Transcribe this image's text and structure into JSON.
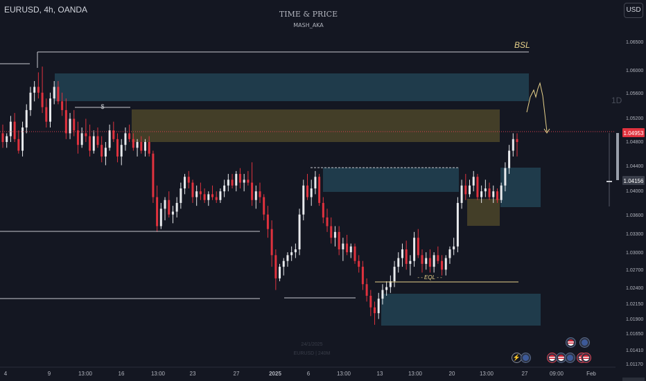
{
  "header": {
    "symbol": "EURUSD, 4h, OANDA",
    "currency_button": "USD",
    "watermark_title": "TIME & PRICE",
    "watermark_author": "MASH_AKA",
    "faint_date": "24/1/2025",
    "faint_symbol": "EURUSD | 240M"
  },
  "chart_data": {
    "type": "candlestick",
    "title": "EURUSD, 4h, OANDA",
    "ylim": [
      1.0113,
      1.068
    ],
    "y_ticks": [
      "1.06500",
      "1.06000",
      "1.05600",
      "1.05200",
      "1.04800",
      "1.04400",
      "1.04000",
      "1.03600",
      "1.03300",
      "1.03000",
      "1.02700",
      "1.02400",
      "1.02150",
      "1.01900",
      "1.01650",
      "1.01410",
      "1.01170"
    ],
    "x_ticks": [
      "4",
      "9",
      "13:00",
      "16",
      "13:00",
      "23",
      "27",
      "2025",
      "6",
      "13:00",
      "13",
      "13:00",
      "20",
      "13:00",
      "27",
      "09:00",
      "Feb"
    ],
    "last_price": "1.04953",
    "prev_close_label": "1.04156",
    "annotations": {
      "bsl": "BSL",
      "eql": "- - EQL - -",
      "dollar": "$",
      "id_label": "1D"
    },
    "series": [
      {
        "values": [
          {
            "o": 1.051,
            "h": 1.0525,
            "l": 1.0485,
            "c": 1.0495
          },
          {
            "o": 1.0495,
            "h": 1.051,
            "l": 1.0485,
            "c": 1.0505
          },
          {
            "o": 1.0505,
            "h": 1.054,
            "l": 1.0495,
            "c": 1.053
          },
          {
            "o": 1.053,
            "h": 1.0545,
            "l": 1.0495,
            "c": 1.05
          },
          {
            "o": 1.05,
            "h": 1.0515,
            "l": 1.0475,
            "c": 1.048
          },
          {
            "o": 1.048,
            "h": 1.053,
            "l": 1.047,
            "c": 1.052
          },
          {
            "o": 1.052,
            "h": 1.056,
            "l": 1.051,
            "c": 1.055
          },
          {
            "o": 1.055,
            "h": 1.059,
            "l": 1.054,
            "c": 1.058
          },
          {
            "o": 1.058,
            "h": 1.06,
            "l": 1.0565,
            "c": 1.059
          },
          {
            "o": 1.059,
            "h": 1.0615,
            "l": 1.057,
            "c": 1.058
          },
          {
            "o": 1.058,
            "h": 1.0625,
            "l": 1.0545,
            "c": 1.0555
          },
          {
            "o": 1.0555,
            "h": 1.057,
            "l": 1.052,
            "c": 1.053
          },
          {
            "o": 1.053,
            "h": 1.058,
            "l": 1.052,
            "c": 1.057
          },
          {
            "o": 1.057,
            "h": 1.06,
            "l": 1.056,
            "c": 1.059
          },
          {
            "o": 1.059,
            "h": 1.06,
            "l": 1.056,
            "c": 1.0565
          },
          {
            "o": 1.0565,
            "h": 1.058,
            "l": 1.054,
            "c": 1.055
          },
          {
            "o": 1.055,
            "h": 1.057,
            "l": 1.05,
            "c": 1.051
          },
          {
            "o": 1.051,
            "h": 1.0545,
            "l": 1.05,
            "c": 1.0535
          },
          {
            "o": 1.0535,
            "h": 1.055,
            "l": 1.0505,
            "c": 1.0515
          },
          {
            "o": 1.0515,
            "h": 1.053,
            "l": 1.0475,
            "c": 1.049
          },
          {
            "o": 1.049,
            "h": 1.052,
            "l": 1.0485,
            "c": 1.051
          },
          {
            "o": 1.051,
            "h": 1.0535,
            "l": 1.0495,
            "c": 1.0505
          },
          {
            "o": 1.0505,
            "h": 1.0525,
            "l": 1.047,
            "c": 1.048
          },
          {
            "o": 1.048,
            "h": 1.0515,
            "l": 1.0475,
            "c": 1.0505
          },
          {
            "o": 1.0505,
            "h": 1.052,
            "l": 1.0485,
            "c": 1.049
          },
          {
            "o": 1.049,
            "h": 1.0505,
            "l": 1.046,
            "c": 1.047
          },
          {
            "o": 1.047,
            "h": 1.0495,
            "l": 1.0455,
            "c": 1.0485
          },
          {
            "o": 1.0485,
            "h": 1.0525,
            "l": 1.048,
            "c": 1.0515
          },
          {
            "o": 1.0515,
            "h": 1.053,
            "l": 1.0495,
            "c": 1.05
          },
          {
            "o": 1.05,
            "h": 1.051,
            "l": 1.046,
            "c": 1.047
          },
          {
            "o": 1.047,
            "h": 1.05,
            "l": 1.0455,
            "c": 1.049
          },
          {
            "o": 1.049,
            "h": 1.052,
            "l": 1.048,
            "c": 1.051
          },
          {
            "o": 1.051,
            "h": 1.0525,
            "l": 1.0495,
            "c": 1.05
          },
          {
            "o": 1.05,
            "h": 1.051,
            "l": 1.048,
            "c": 1.0485
          },
          {
            "o": 1.0485,
            "h": 1.05,
            "l": 1.047,
            "c": 1.0495
          },
          {
            "o": 1.0495,
            "h": 1.0505,
            "l": 1.0475,
            "c": 1.048
          },
          {
            "o": 1.048,
            "h": 1.05,
            "l": 1.047,
            "c": 1.0495
          },
          {
            "o": 1.0495,
            "h": 1.0505,
            "l": 1.047,
            "c": 1.0475
          },
          {
            "o": 1.0475,
            "h": 1.048,
            "l": 1.039,
            "c": 1.04
          },
          {
            "o": 1.04,
            "h": 1.042,
            "l": 1.034,
            "c": 1.035
          },
          {
            "o": 1.035,
            "h": 1.039,
            "l": 1.0345,
            "c": 1.038
          },
          {
            "o": 1.038,
            "h": 1.04,
            "l": 1.036,
            "c": 1.0395
          },
          {
            "o": 1.0395,
            "h": 1.041,
            "l": 1.0365,
            "c": 1.037
          },
          {
            "o": 1.037,
            "h": 1.0385,
            "l": 1.0355,
            "c": 1.0375
          },
          {
            "o": 1.0375,
            "h": 1.04,
            "l": 1.0365,
            "c": 1.039
          },
          {
            "o": 1.039,
            "h": 1.0425,
            "l": 1.038,
            "c": 1.0415
          },
          {
            "o": 1.0415,
            "h": 1.044,
            "l": 1.0405,
            "c": 1.0435
          },
          {
            "o": 1.0435,
            "h": 1.0445,
            "l": 1.0415,
            "c": 1.0425
          },
          {
            "o": 1.0425,
            "h": 1.043,
            "l": 1.039,
            "c": 1.04
          },
          {
            "o": 1.04,
            "h": 1.042,
            "l": 1.0385,
            "c": 1.041
          },
          {
            "o": 1.041,
            "h": 1.0425,
            "l": 1.0395,
            "c": 1.0405
          },
          {
            "o": 1.0405,
            "h": 1.0415,
            "l": 1.039,
            "c": 1.0395
          },
          {
            "o": 1.0395,
            "h": 1.041,
            "l": 1.0385,
            "c": 1.0405
          },
          {
            "o": 1.0405,
            "h": 1.042,
            "l": 1.0395,
            "c": 1.04
          },
          {
            "o": 1.04,
            "h": 1.041,
            "l": 1.039,
            "c": 1.0395
          },
          {
            "o": 1.0395,
            "h": 1.0415,
            "l": 1.039,
            "c": 1.041
          },
          {
            "o": 1.041,
            "h": 1.043,
            "l": 1.04,
            "c": 1.042
          },
          {
            "o": 1.042,
            "h": 1.044,
            "l": 1.041,
            "c": 1.043
          },
          {
            "o": 1.043,
            "h": 1.044,
            "l": 1.0415,
            "c": 1.042
          },
          {
            "o": 1.042,
            "h": 1.0445,
            "l": 1.041,
            "c": 1.044
          },
          {
            "o": 1.044,
            "h": 1.045,
            "l": 1.0415,
            "c": 1.0425
          },
          {
            "o": 1.0425,
            "h": 1.044,
            "l": 1.041,
            "c": 1.043
          },
          {
            "o": 1.043,
            "h": 1.0445,
            "l": 1.042,
            "c": 1.0425
          },
          {
            "o": 1.0425,
            "h": 1.046,
            "l": 1.0385,
            "c": 1.0395
          },
          {
            "o": 1.0395,
            "h": 1.042,
            "l": 1.038,
            "c": 1.041
          },
          {
            "o": 1.041,
            "h": 1.0425,
            "l": 1.039,
            "c": 1.04
          },
          {
            "o": 1.04,
            "h": 1.0405,
            "l": 1.036,
            "c": 1.037
          },
          {
            "o": 1.037,
            "h": 1.0385,
            "l": 1.033,
            "c": 1.0345
          },
          {
            "o": 1.0345,
            "h": 1.036,
            "l": 1.028,
            "c": 1.03
          },
          {
            "o": 1.03,
            "h": 1.031,
            "l": 1.024,
            "c": 1.026
          },
          {
            "o": 1.026,
            "h": 1.0285,
            "l": 1.0255,
            "c": 1.028
          },
          {
            "o": 1.028,
            "h": 1.0295,
            "l": 1.0265,
            "c": 1.029
          },
          {
            "o": 1.029,
            "h": 1.0305,
            "l": 1.028,
            "c": 1.03
          },
          {
            "o": 1.03,
            "h": 1.0315,
            "l": 1.029,
            "c": 1.0305
          },
          {
            "o": 1.0305,
            "h": 1.032,
            "l": 1.0295,
            "c": 1.031
          },
          {
            "o": 1.031,
            "h": 1.038,
            "l": 1.03,
            "c": 1.037
          },
          {
            "o": 1.037,
            "h": 1.043,
            "l": 1.036,
            "c": 1.042
          },
          {
            "o": 1.042,
            "h": 1.044,
            "l": 1.0395,
            "c": 1.04
          },
          {
            "o": 1.04,
            "h": 1.043,
            "l": 1.0385,
            "c": 1.0415
          },
          {
            "o": 1.0415,
            "h": 1.0445,
            "l": 1.0405,
            "c": 1.0435
          },
          {
            "o": 1.0435,
            "h": 1.044,
            "l": 1.0385,
            "c": 1.039
          },
          {
            "o": 1.039,
            "h": 1.04,
            "l": 1.0355,
            "c": 1.0365
          },
          {
            "o": 1.0365,
            "h": 1.038,
            "l": 1.034,
            "c": 1.035
          },
          {
            "o": 1.035,
            "h": 1.0365,
            "l": 1.032,
            "c": 1.033
          },
          {
            "o": 1.033,
            "h": 1.035,
            "l": 1.0315,
            "c": 1.034
          },
          {
            "o": 1.034,
            "h": 1.035,
            "l": 1.03,
            "c": 1.031
          },
          {
            "o": 1.031,
            "h": 1.033,
            "l": 1.029,
            "c": 1.032
          },
          {
            "o": 1.032,
            "h": 1.0335,
            "l": 1.03,
            "c": 1.0305
          },
          {
            "o": 1.0305,
            "h": 1.032,
            "l": 1.0295,
            "c": 1.0315
          },
          {
            "o": 1.0315,
            "h": 1.032,
            "l": 1.0285,
            "c": 1.029
          },
          {
            "o": 1.029,
            "h": 1.03,
            "l": 1.027,
            "c": 1.028
          },
          {
            "o": 1.028,
            "h": 1.029,
            "l": 1.024,
            "c": 1.025
          },
          {
            "o": 1.025,
            "h": 1.026,
            "l": 1.022,
            "c": 1.023
          },
          {
            "o": 1.023,
            "h": 1.024,
            "l": 1.0195,
            "c": 1.021
          },
          {
            "o": 1.021,
            "h": 1.022,
            "l": 1.018,
            "c": 1.02
          },
          {
            "o": 1.02,
            "h": 1.0235,
            "l": 1.019,
            "c": 1.0225
          },
          {
            "o": 1.0225,
            "h": 1.025,
            "l": 1.0215,
            "c": 1.024
          },
          {
            "o": 1.024,
            "h": 1.0255,
            "l": 1.023,
            "c": 1.0245
          },
          {
            "o": 1.0245,
            "h": 1.0265,
            "l": 1.0235,
            "c": 1.0255
          },
          {
            "o": 1.0255,
            "h": 1.029,
            "l": 1.0245,
            "c": 1.028
          },
          {
            "o": 1.028,
            "h": 1.0305,
            "l": 1.027,
            "c": 1.0295
          },
          {
            "o": 1.0295,
            "h": 1.032,
            "l": 1.028,
            "c": 1.031
          },
          {
            "o": 1.031,
            "h": 1.0325,
            "l": 1.0275,
            "c": 1.0285
          },
          {
            "o": 1.0285,
            "h": 1.03,
            "l": 1.0265,
            "c": 1.029
          },
          {
            "o": 1.029,
            "h": 1.034,
            "l": 1.028,
            "c": 1.033
          },
          {
            "o": 1.033,
            "h": 1.0345,
            "l": 1.0295,
            "c": 1.03
          },
          {
            "o": 1.03,
            "h": 1.031,
            "l": 1.027,
            "c": 1.0285
          },
          {
            "o": 1.0285,
            "h": 1.0305,
            "l": 1.0275,
            "c": 1.0295
          },
          {
            "o": 1.0295,
            "h": 1.031,
            "l": 1.027,
            "c": 1.028
          },
          {
            "o": 1.028,
            "h": 1.0305,
            "l": 1.027,
            "c": 1.03
          },
          {
            "o": 1.03,
            "h": 1.0315,
            "l": 1.0285,
            "c": 1.029
          },
          {
            "o": 1.029,
            "h": 1.03,
            "l": 1.0265,
            "c": 1.0275
          },
          {
            "o": 1.0275,
            "h": 1.03,
            "l": 1.0265,
            "c": 1.0295
          },
          {
            "o": 1.0295,
            "h": 1.0315,
            "l": 1.0285,
            "c": 1.031
          },
          {
            "o": 1.031,
            "h": 1.033,
            "l": 1.03,
            "c": 1.0315
          },
          {
            "o": 1.0315,
            "h": 1.04,
            "l": 1.0305,
            "c": 1.039
          },
          {
            "o": 1.039,
            "h": 1.043,
            "l": 1.038,
            "c": 1.042
          },
          {
            "o": 1.042,
            "h": 1.044,
            "l": 1.0395,
            "c": 1.0405
          },
          {
            "o": 1.0405,
            "h": 1.043,
            "l": 1.04,
            "c": 1.042
          },
          {
            "o": 1.042,
            "h": 1.0445,
            "l": 1.041,
            "c": 1.0435
          },
          {
            "o": 1.0435,
            "h": 1.044,
            "l": 1.0395,
            "c": 1.04
          },
          {
            "o": 1.04,
            "h": 1.042,
            "l": 1.039,
            "c": 1.041
          },
          {
            "o": 1.041,
            "h": 1.043,
            "l": 1.04,
            "c": 1.0415
          },
          {
            "o": 1.0415,
            "h": 1.0425,
            "l": 1.0395,
            "c": 1.04
          },
          {
            "o": 1.04,
            "h": 1.042,
            "l": 1.039,
            "c": 1.041
          },
          {
            "o": 1.041,
            "h": 1.0415,
            "l": 1.039,
            "c": 1.0395
          },
          {
            "o": 1.0395,
            "h": 1.0425,
            "l": 1.039,
            "c": 1.042
          },
          {
            "o": 1.042,
            "h": 1.046,
            "l": 1.041,
            "c": 1.045
          },
          {
            "o": 1.045,
            "h": 1.049,
            "l": 1.044,
            "c": 1.048
          },
          {
            "o": 1.048,
            "h": 1.051,
            "l": 1.047,
            "c": 1.05
          },
          {
            "o": 1.05,
            "h": 1.051,
            "l": 1.047,
            "c": 1.0495
          }
        ]
      }
    ]
  },
  "events": [
    "bolt",
    "eu",
    "us",
    "us",
    "eu",
    "us",
    "us",
    "eu",
    "us"
  ]
}
